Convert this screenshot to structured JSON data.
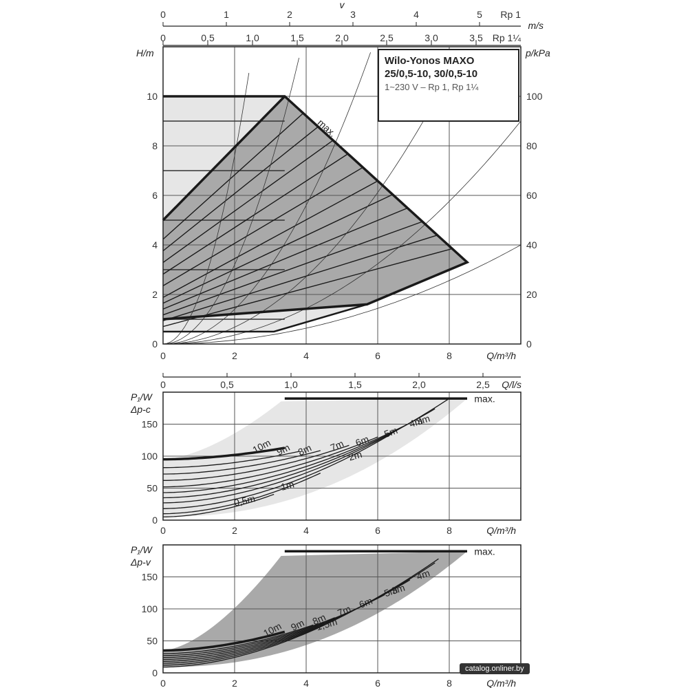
{
  "chart_data": [
    {
      "type": "line",
      "id": "head_curve",
      "title_lines": [
        "Wilo-Yonos MAXO",
        "25/0,5-10, 30/0,5-10"
      ],
      "subtitle": "1~230 V – Rp 1, Rp 1¼",
      "xlabel": "Q/m³/h",
      "ylabel": "H/m",
      "ylabel_right": "p/kPa",
      "xlim": [
        0,
        10
      ],
      "ylim": [
        0,
        12
      ],
      "grid": true,
      "x_ticks": [
        "0",
        "2",
        "4",
        "6",
        "8"
      ],
      "y_ticks": [
        "0",
        "2",
        "4",
        "6",
        "8",
        "10"
      ],
      "y_right_ticks": [
        "0",
        "20",
        "40",
        "60",
        "80",
        "100"
      ],
      "top_axis_v_label": "v",
      "top_axis_rp1_label": "Rp 1",
      "top_axis_rp1_ticks": [
        "0",
        "1",
        "2",
        "3",
        "4",
        "5"
      ],
      "top_axis_ms_label": "m/s",
      "top_axis_rp114_label": "Rp 1¼",
      "top_axis_rp114_ticks": [
        "0",
        "0,5",
        "1,0",
        "1,5",
        "2,0",
        "2,5",
        "3,0",
        "3,5"
      ],
      "max_label": "max.",
      "max_envelope": [
        [
          0,
          5.0
        ],
        [
          3.4,
          10.0
        ],
        [
          8.5,
          3.3
        ],
        [
          5.7,
          1.6
        ],
        [
          0,
          1.0
        ]
      ],
      "light_area": [
        [
          0,
          10.0
        ],
        [
          3.4,
          10.0
        ],
        [
          0,
          5.0
        ]
      ],
      "upper_light": [
        [
          0,
          0.5
        ],
        [
          3.1,
          0.5
        ],
        [
          5.7,
          1.6
        ],
        [
          0,
          1.0
        ]
      ],
      "control_lines_x0_head": [
        9,
        8,
        7,
        6,
        5,
        4,
        3.5,
        3,
        2.5,
        2,
        1.5
      ],
      "system_curves_k": [
        1.9,
        0.8,
        0.35,
        0.17,
        0.09,
        0.04
      ]
    },
    {
      "type": "line",
      "id": "power_dp_c",
      "ylabel_lines": [
        "P₁/W",
        "Δp-c"
      ],
      "xlabel": "Q/m³/h",
      "top_axis_label": "Q/l/s",
      "top_axis_ticks": [
        "0",
        "0,5",
        "1,0",
        "1,5",
        "2,0",
        "2,5"
      ],
      "xlim": [
        0,
        10
      ],
      "ylim": [
        0,
        200
      ],
      "x_ticks": [
        "0",
        "2",
        "4",
        "6",
        "8"
      ],
      "y_ticks": [
        "0",
        "50",
        "100",
        "150"
      ],
      "max_label": "max.",
      "max_power": 190,
      "series": [
        {
          "name": "10m",
          "p0": 95,
          "x_end": 3.4,
          "label_x": 2.8
        },
        {
          "name": "9m",
          "p0": 82,
          "x_end": 3.8,
          "label_x": 3.4
        },
        {
          "name": "8m",
          "p0": 72,
          "x_end": 4.4,
          "label_x": 4.0
        },
        {
          "name": "7m",
          "p0": 62,
          "x_end": 5.2,
          "label_x": 4.9
        },
        {
          "name": "6m",
          "p0": 52,
          "x_end": 6.0,
          "label_x": 5.6
        },
        {
          "name": "5m",
          "p0": 43,
          "x_end": 6.8,
          "label_x": 6.4
        },
        {
          "name": "4m",
          "p0": 35,
          "x_end": 7.6,
          "label_x": 7.1
        },
        {
          "name": "3m",
          "p0": 27,
          "x_end": 8.0,
          "label_x": 7.3
        },
        {
          "name": "2m",
          "p0": 18,
          "x_end": 6.4,
          "label_x": 5.4
        },
        {
          "name": "1m",
          "p0": 10,
          "x_end": 4.4,
          "label_x": 3.5
        },
        {
          "name": "0,5m",
          "p0": 5,
          "x_end": 3.1,
          "label_x": 2.3
        }
      ]
    },
    {
      "type": "line",
      "id": "power_dp_v",
      "ylabel_lines": [
        "P₁/W",
        "Δp-v"
      ],
      "xlabel": "Q/m³/h",
      "xlim": [
        0,
        10
      ],
      "ylim": [
        0,
        200
      ],
      "x_ticks": [
        "0",
        "2",
        "4",
        "6",
        "8"
      ],
      "y_ticks": [
        "0",
        "50",
        "100",
        "150"
      ],
      "max_label": "max.",
      "max_power": 190,
      "series": [
        {
          "name": "10m",
          "p0": 35,
          "x_end": 3.4,
          "label_x": 3.1
        },
        {
          "name": "9m",
          "p0": 30,
          "x_end": 4.2,
          "label_x": 3.8
        },
        {
          "name": "8m",
          "p0": 27,
          "x_end": 4.8,
          "label_x": 4.4
        },
        {
          "name": "7m",
          "p0": 24,
          "x_end": 5.6,
          "label_x": 5.1
        },
        {
          "name": "6m",
          "p0": 21,
          "x_end": 6.2,
          "label_x": 5.7
        },
        {
          "name": "5m",
          "p0": 18,
          "x_end": 6.9,
          "label_x": 6.4
        },
        {
          "name": "4m",
          "p0": 15,
          "x_end": 7.6,
          "label_x": 7.3
        },
        {
          "name": "3m",
          "p0": 12,
          "x_end": 7.7,
          "label_x": 6.6
        },
        {
          "name": "1,5m",
          "p0": 9,
          "x_end": 5.7,
          "label_x": 4.6
        }
      ]
    }
  ],
  "watermark": "catalog.onliner.by"
}
